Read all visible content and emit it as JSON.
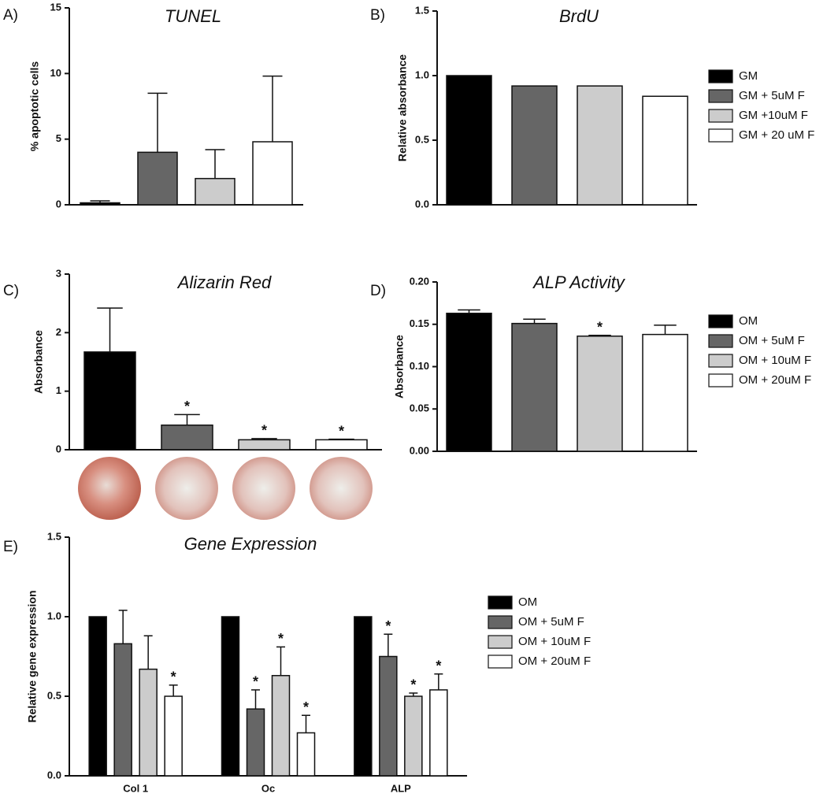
{
  "chart_data": [
    {
      "type": "bar",
      "panel_label": "A)",
      "title": "TUNEL",
      "y_label": "% apoptotic cells",
      "categories": [
        null
      ],
      "ylim": [
        0,
        15
      ],
      "yticks": [
        0,
        5,
        10,
        15
      ],
      "series": [
        {
          "color": "#000000",
          "values": [
            0.15
          ],
          "errors": [
            0.15
          ]
        },
        {
          "color": "#666666",
          "values": [
            4.0
          ],
          "errors": [
            4.5
          ]
        },
        {
          "color": "#cccccc",
          "values": [
            2.0
          ],
          "errors": [
            2.2
          ]
        },
        {
          "color": "#ffffff",
          "values": [
            4.8
          ],
          "errors": [
            5.0
          ]
        }
      ]
    },
    {
      "type": "bar",
      "panel_label": "B)",
      "title": "BrdU",
      "y_label": "Relative absorbance",
      "categories": [
        null
      ],
      "ylim": [
        0,
        1.5
      ],
      "yticks": [
        {
          "value": 0,
          "label": "0.0"
        },
        {
          "value": 0.5,
          "label": "0.5"
        },
        {
          "value": 1,
          "label": "1.0"
        },
        {
          "value": 1.5,
          "label": "1.5"
        }
      ],
      "series": [
        {
          "name": "GM",
          "color": "#000000",
          "values": [
            1.0
          ]
        },
        {
          "name": "GM + 5uM F",
          "color": "#666666",
          "values": [
            0.92
          ]
        },
        {
          "name": "GM +10uM F",
          "color": "#cccccc",
          "values": [
            0.92
          ]
        },
        {
          "name": "GM + 20 uM F",
          "color": "#ffffff",
          "values": [
            0.84
          ]
        }
      ]
    },
    {
      "type": "bar",
      "panel_label": "C)",
      "title": "Alizarin Red",
      "y_label": "Absorbance",
      "categories": [
        null
      ],
      "ylim": [
        0,
        3
      ],
      "yticks": [
        0,
        1,
        2,
        3
      ],
      "series": [
        {
          "color": "#000000",
          "values": [
            1.67
          ],
          "errors": [
            0.75
          ]
        },
        {
          "color": "#666666",
          "values": [
            0.42
          ],
          "errors": [
            0.18
          ],
          "annotations": [
            "*"
          ]
        },
        {
          "color": "#cccccc",
          "values": [
            0.17
          ],
          "errors": [
            0.02
          ],
          "annotations": [
            "*"
          ]
        },
        {
          "color": "#ffffff",
          "values": [
            0.17
          ],
          "errors": [
            0.01
          ],
          "annotations": [
            "*"
          ]
        }
      ]
    },
    {
      "type": "bar",
      "panel_label": "D)",
      "title": "ALP Activity",
      "y_label": "Absorbance",
      "categories": [
        null
      ],
      "ylim": [
        0,
        0.2
      ],
      "yticks": [
        {
          "value": 0,
          "label": "0.00"
        },
        {
          "value": 0.05,
          "label": "0.05"
        },
        {
          "value": 0.1,
          "label": "0.10"
        },
        {
          "value": 0.15,
          "label": "0.15"
        },
        {
          "value": 0.2,
          "label": "0.20"
        }
      ],
      "series": [
        {
          "name": "OM",
          "color": "#000000",
          "values": [
            0.163
          ],
          "errors": [
            0.004
          ]
        },
        {
          "name": "OM + 5uM F",
          "color": "#666666",
          "values": [
            0.151
          ],
          "errors": [
            0.005
          ]
        },
        {
          "name": "OM + 10uM F",
          "color": "#cccccc",
          "values": [
            0.136
          ],
          "errors": [
            0.001
          ],
          "annotations": [
            "*"
          ]
        },
        {
          "name": "OM + 20uM F",
          "color": "#ffffff",
          "values": [
            0.138
          ],
          "errors": [
            0.011
          ]
        }
      ]
    },
    {
      "type": "bar",
      "panel_label": "E)",
      "title": "Gene Expression",
      "y_label": "Relative gene expression",
      "categories": [
        "Col 1",
        "Oc",
        "ALP"
      ],
      "ylim": [
        0,
        1.5
      ],
      "yticks": [
        {
          "value": 0,
          "label": "0.0"
        },
        {
          "value": 0.5,
          "label": "0.5"
        },
        {
          "value": 1,
          "label": "1.0"
        },
        {
          "value": 1.5,
          "label": "1.5"
        }
      ],
      "series": [
        {
          "name": "OM",
          "color": "#000000",
          "values": [
            1.0,
            1.0,
            1.0
          ]
        },
        {
          "name": "OM + 5uM F",
          "color": "#666666",
          "values": [
            0.83,
            0.42,
            0.75
          ],
          "errors": [
            0.21,
            0.12,
            0.14
          ],
          "annotations": [
            null,
            "*",
            "*"
          ]
        },
        {
          "name": "OM + 10uM F",
          "color": "#cccccc",
          "values": [
            0.67,
            0.63,
            0.5
          ],
          "errors": [
            0.21,
            0.18,
            0.02
          ],
          "annotations": [
            null,
            "*",
            "*"
          ]
        },
        {
          "name": "OM + 20uM F",
          "color": "#ffffff",
          "values": [
            0.5,
            0.27,
            0.54
          ],
          "errors": [
            0.07,
            0.11,
            0.1
          ],
          "annotations": [
            "*",
            "*",
            "*"
          ]
        }
      ]
    }
  ]
}
